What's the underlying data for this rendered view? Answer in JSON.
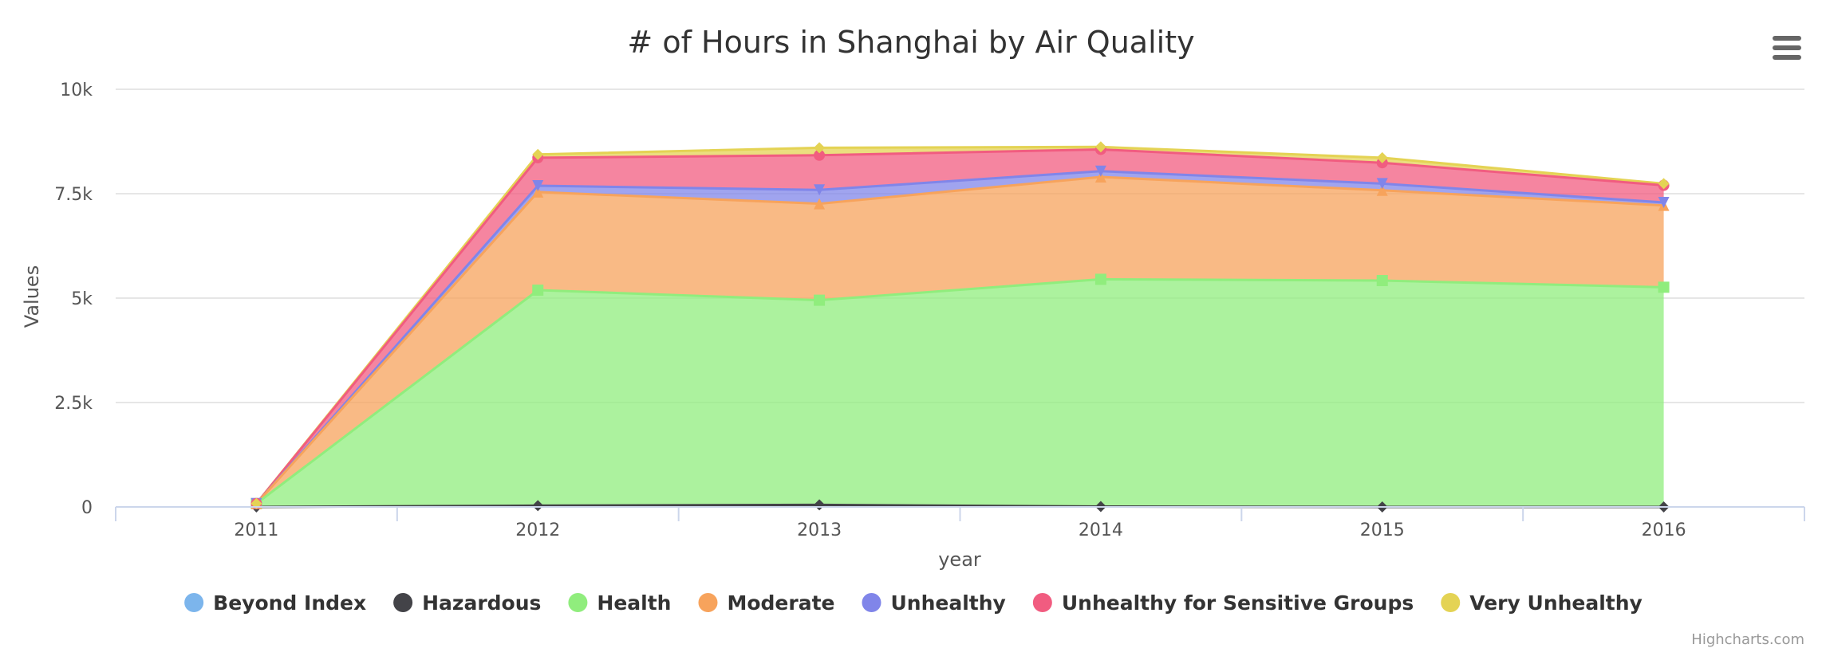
{
  "chart_data": {
    "type": "area",
    "stacked": true,
    "title": "# of Hours in Shanghai by Air Quality",
    "xlabel": "year",
    "ylabel": "Values",
    "x": [
      "2011",
      "2012",
      "2013",
      "2014",
      "2015",
      "2016"
    ],
    "y_tick_labels": [
      "0",
      "2.5k",
      "5k",
      "7.5k",
      "10k"
    ],
    "ylim": [
      0,
      10000
    ],
    "grid": true,
    "legend_position": "bottom",
    "series": [
      {
        "name": "Beyond Index",
        "color": "#7cb5ec",
        "marker": "circle",
        "values": [
          0,
          0,
          0,
          0,
          0,
          0
        ]
      },
      {
        "name": "Hazardous",
        "color": "#434348",
        "marker": "diamond",
        "values": [
          0,
          30,
          50,
          10,
          0,
          0
        ]
      },
      {
        "name": "Health",
        "color": "#90ed7d",
        "marker": "square",
        "values": [
          80,
          5160,
          4900,
          5440,
          5420,
          5260
        ]
      },
      {
        "name": "Moderate",
        "color": "#f7a35c",
        "marker": "triangle",
        "values": [
          0,
          2350,
          2310,
          2450,
          2160,
          1960
        ]
      },
      {
        "name": "Unhealthy",
        "color": "#8085e9",
        "marker": "triangle-down",
        "values": [
          0,
          150,
          330,
          140,
          160,
          70
        ]
      },
      {
        "name": "Unhealthy for Sensitive Groups",
        "color": "#f15c80",
        "marker": "circle",
        "values": [
          0,
          670,
          830,
          520,
          500,
          410
        ]
      },
      {
        "name": "Very Unhealthy",
        "color": "#e4d354",
        "marker": "diamond",
        "values": [
          0,
          80,
          180,
          60,
          120,
          40
        ]
      }
    ]
  },
  "credits": "Highcharts.com",
  "menu_icon": "hamburger-menu-icon"
}
